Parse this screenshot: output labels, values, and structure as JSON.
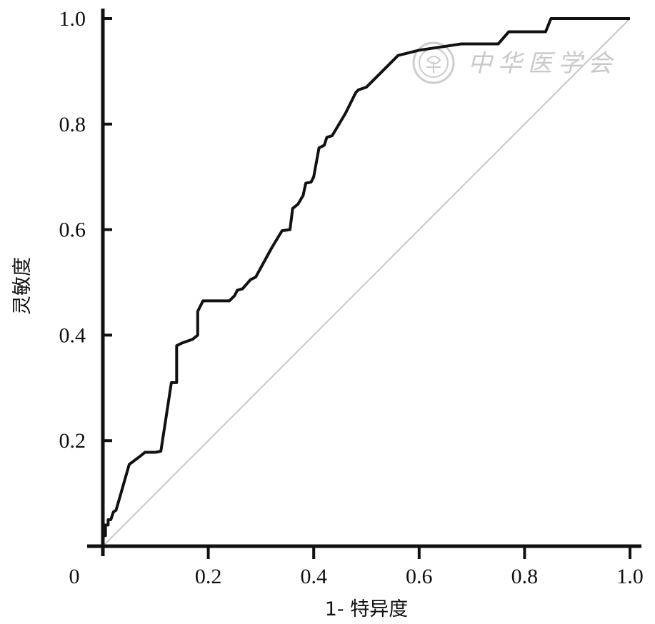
{
  "chart_data": {
    "type": "line",
    "title": "",
    "xlabel": "1- 特异度",
    "ylabel": "灵敏度",
    "xlim": [
      0,
      1.0
    ],
    "ylim": [
      0,
      1.0
    ],
    "origin_label": "0",
    "x_ticks": [
      "0.2",
      "0.4",
      "0.6",
      "0.8",
      "1.0"
    ],
    "x_tick_values": [
      0.2,
      0.4,
      0.6,
      0.8,
      1.0
    ],
    "y_ticks": [
      "0.2",
      "0.4",
      "0.6",
      "0.8",
      "1.0"
    ],
    "y_tick_values": [
      0.2,
      0.4,
      0.6,
      0.8,
      1.0
    ],
    "grid": false,
    "legend": "none",
    "series": [
      {
        "role": "roc-curve",
        "color": "#111111",
        "points": [
          [
            0,
            0
          ],
          [
            0,
            0.02
          ],
          [
            0.005,
            0.02
          ],
          [
            0.005,
            0.04
          ],
          [
            0.01,
            0.04
          ],
          [
            0.01,
            0.05
          ],
          [
            0.015,
            0.05
          ],
          [
            0.02,
            0.065
          ],
          [
            0.025,
            0.068
          ],
          [
            0.03,
            0.085
          ],
          [
            0.04,
            0.12
          ],
          [
            0.05,
            0.155
          ],
          [
            0.07,
            0.17
          ],
          [
            0.08,
            0.178
          ],
          [
            0.1,
            0.178
          ],
          [
            0.11,
            0.18
          ],
          [
            0.12,
            0.245
          ],
          [
            0.13,
            0.31
          ],
          [
            0.14,
            0.31
          ],
          [
            0.14,
            0.38
          ],
          [
            0.15,
            0.385
          ],
          [
            0.17,
            0.392
          ],
          [
            0.18,
            0.4
          ],
          [
            0.18,
            0.445
          ],
          [
            0.19,
            0.465
          ],
          [
            0.24,
            0.465
          ],
          [
            0.25,
            0.475
          ],
          [
            0.255,
            0.485
          ],
          [
            0.265,
            0.488
          ],
          [
            0.28,
            0.505
          ],
          [
            0.29,
            0.51
          ],
          [
            0.32,
            0.565
          ],
          [
            0.34,
            0.598
          ],
          [
            0.355,
            0.6
          ],
          [
            0.36,
            0.64
          ],
          [
            0.37,
            0.648
          ],
          [
            0.38,
            0.665
          ],
          [
            0.385,
            0.688
          ],
          [
            0.395,
            0.69
          ],
          [
            0.4,
            0.7
          ],
          [
            0.41,
            0.755
          ],
          [
            0.42,
            0.76
          ],
          [
            0.425,
            0.775
          ],
          [
            0.435,
            0.778
          ],
          [
            0.46,
            0.82
          ],
          [
            0.48,
            0.86
          ],
          [
            0.485,
            0.865
          ],
          [
            0.5,
            0.87
          ],
          [
            0.56,
            0.93
          ],
          [
            0.6,
            0.94
          ],
          [
            0.68,
            0.952
          ],
          [
            0.75,
            0.952
          ],
          [
            0.77,
            0.975
          ],
          [
            0.84,
            0.975
          ],
          [
            0.85,
            1.0
          ],
          [
            1.0,
            1.0
          ]
        ]
      },
      {
        "role": "reference-diagonal",
        "color": "#c8c8c8",
        "points": [
          [
            0,
            0
          ],
          [
            1.0,
            1.0
          ]
        ]
      }
    ]
  },
  "watermark": {
    "text": "中华医学会",
    "color": "#c9c9c9"
  }
}
